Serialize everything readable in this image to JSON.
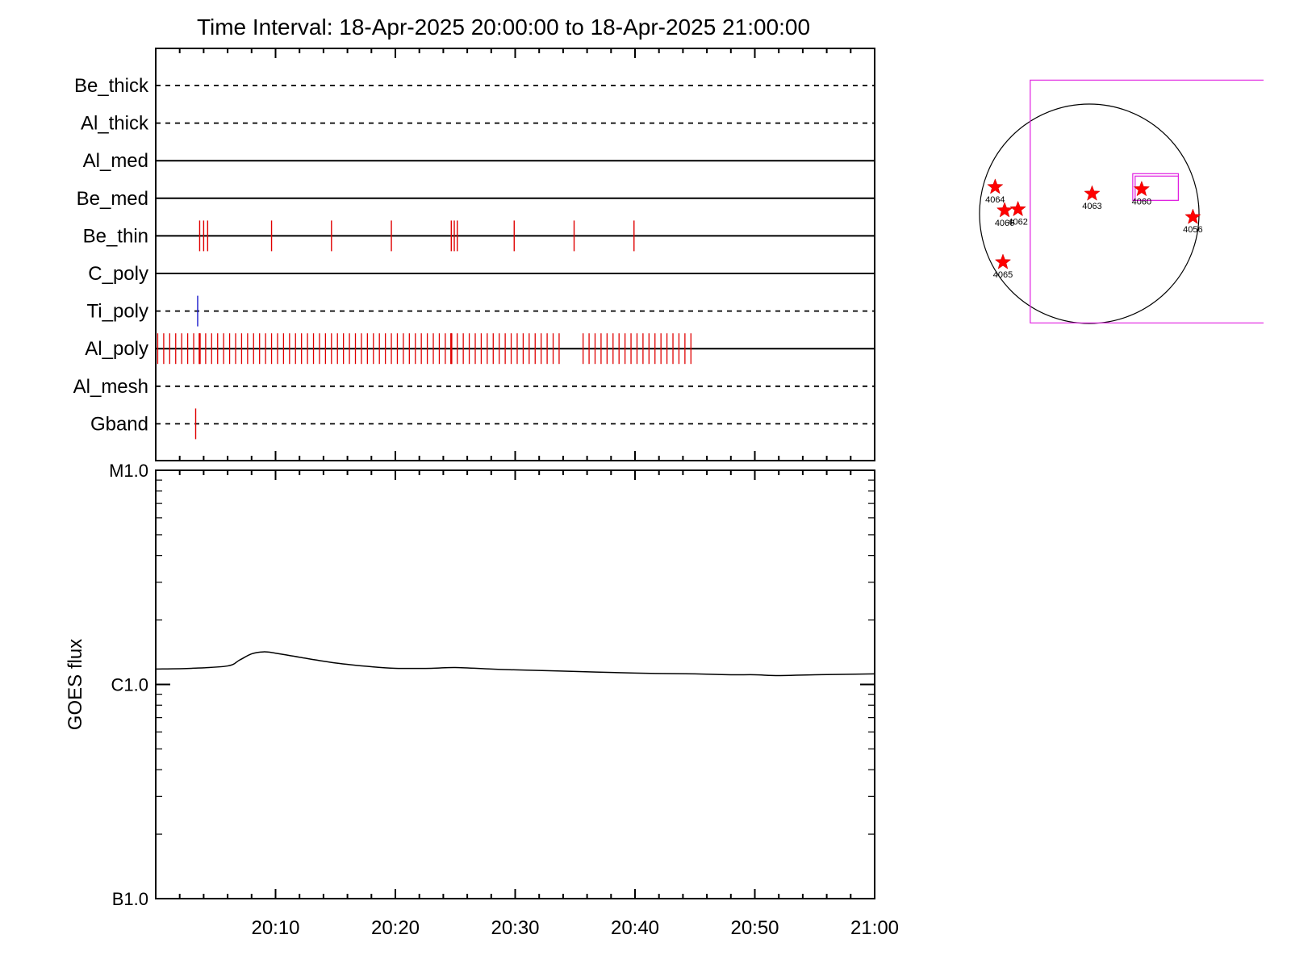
{
  "chart_data": [
    {
      "type": "event-timeline",
      "title": "Time Interval: 18-Apr-2025 20:00:00 to 18-Apr-2025 21:00:00",
      "x_range": [
        "20:00",
        "21:00"
      ],
      "rows": [
        {
          "label": "Be_thick",
          "style": "dashed",
          "events": []
        },
        {
          "label": "Al_thick",
          "style": "dashed",
          "events": []
        },
        {
          "label": "Al_med",
          "style": "solid",
          "events": []
        },
        {
          "label": "Be_med",
          "style": "solid",
          "events": []
        },
        {
          "label": "Be_thin",
          "style": "solid",
          "color": "#e00000",
          "events": [
            "20:03:40",
            "20:04:00",
            "20:04:20",
            "20:09:40",
            "20:14:40",
            "20:19:40",
            "20:24:40",
            "20:24:55",
            "20:25:10",
            "20:29:55",
            "20:34:55",
            "20:39:55"
          ]
        },
        {
          "label": "C_poly",
          "style": "solid",
          "events": []
        },
        {
          "label": "Ti_poly",
          "style": "dashed",
          "color": "#1a1acc",
          "events": [
            "20:03:30"
          ]
        },
        {
          "label": "Al_poly",
          "style": "solid",
          "color": "#e00000",
          "events_regular": {
            "start": "20:00:10",
            "end": "20:44:50",
            "step_seconds": 30,
            "gaps": [
              [
                "20:34:00",
                "20:35:30"
              ]
            ]
          },
          "events_emphasis": [
            "20:03:40",
            "20:24:40"
          ]
        },
        {
          "label": "Al_mesh",
          "style": "dashed",
          "events": []
        },
        {
          "label": "Gband",
          "style": "dashed",
          "color": "#e00000",
          "events": [
            "20:03:20"
          ]
        }
      ]
    },
    {
      "type": "line",
      "ylabel": "GOES flux",
      "xticks": [
        "20:10",
        "20:20",
        "20:30",
        "20:40",
        "20:50",
        "21:00"
      ],
      "y_scale": "log",
      "ylim": [
        1e-07,
        1e-05
      ],
      "yticks": [
        {
          "label": "M1.0",
          "value": 1e-05
        },
        {
          "label": "C1.0",
          "value": 1e-06
        },
        {
          "label": "B1.0",
          "value": 1e-07
        }
      ],
      "series": [
        {
          "x": [
            "20:00",
            "20:03",
            "20:06",
            "20:07",
            "20:08",
            "20:09",
            "20:10",
            "20:12",
            "20:15",
            "20:18",
            "20:20",
            "20:23",
            "20:25",
            "20:28",
            "20:30",
            "20:35",
            "20:40",
            "20:45",
            "20:48",
            "20:50",
            "20:52",
            "20:55",
            "21:00"
          ],
          "y": [
            1.18e-06,
            1.19e-06,
            1.22e-06,
            1.3e-06,
            1.39e-06,
            1.42e-06,
            1.4e-06,
            1.34e-06,
            1.26e-06,
            1.21e-06,
            1.19e-06,
            1.19e-06,
            1.2e-06,
            1.18e-06,
            1.17e-06,
            1.15e-06,
            1.13e-06,
            1.12e-06,
            1.11e-06,
            1.11e-06,
            1.1e-06,
            1.11e-06,
            1.12e-06
          ]
        }
      ]
    },
    {
      "type": "scatter",
      "ylabel": "",
      "points": [
        {
          "label": "4064",
          "x": -845,
          "y": 240
        },
        {
          "label": "4066",
          "x": -760,
          "y": 30
        },
        {
          "label": "4062",
          "x": -640,
          "y": 40
        },
        {
          "label": "4063",
          "x": 25,
          "y": 180
        },
        {
          "label": "4060",
          "x": 470,
          "y": 220
        },
        {
          "label": "4056",
          "x": 930,
          "y": -30
        },
        {
          "label": "4065",
          "x": -775,
          "y": -435
        }
      ],
      "frame_box": {
        "x": [
          -530,
          1600
        ],
        "y": [
          -980,
          1200
        ]
      },
      "fov_box": {
        "x": [
          390,
          800
        ],
        "y": [
          120,
          360
        ]
      }
    }
  ],
  "colors": {
    "event_red": "#e00000",
    "event_blue": "#1a1acc",
    "box_magenta": "#e020e0",
    "star_red": "#ff0000"
  }
}
